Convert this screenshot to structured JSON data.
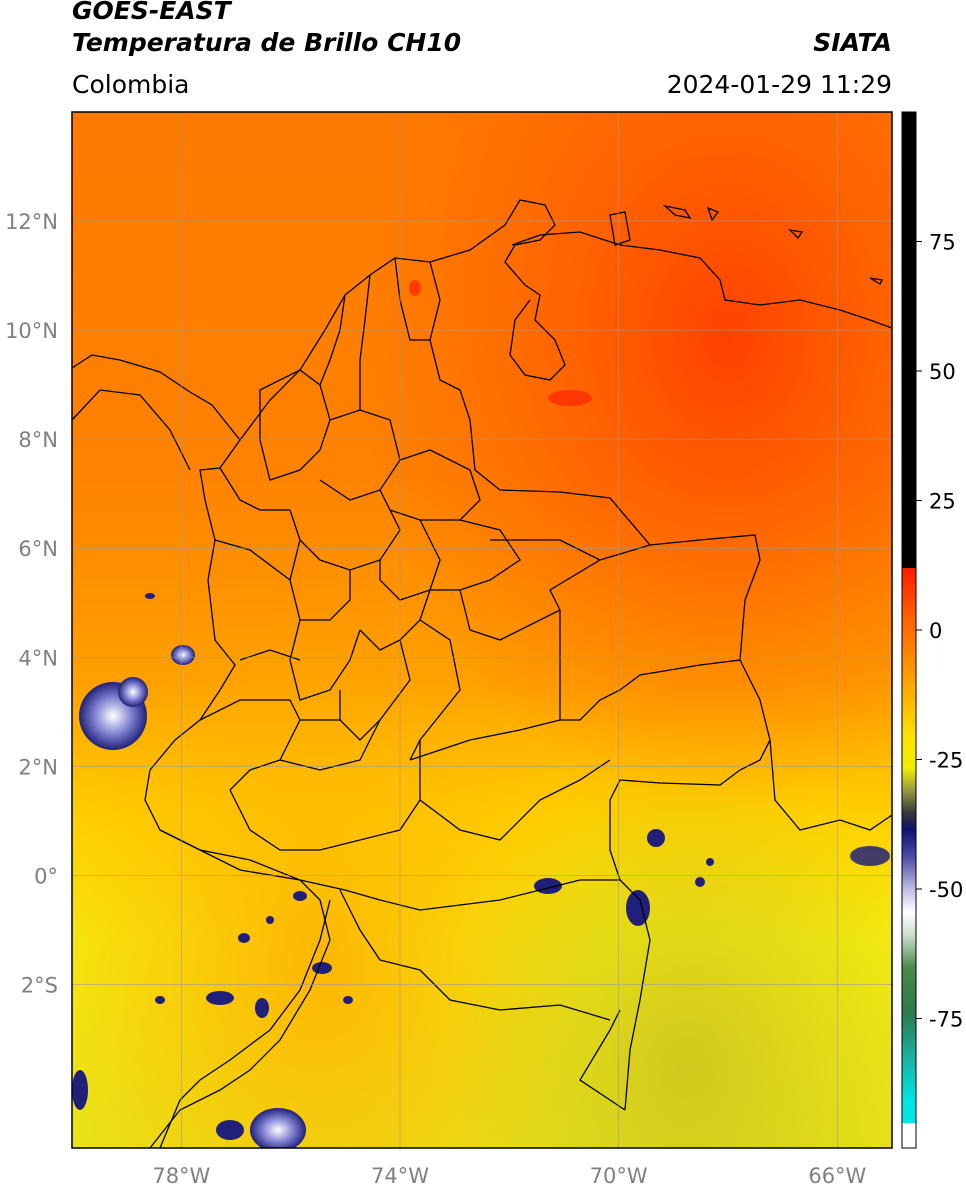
{
  "header": {
    "satellite": "GOES-EAST",
    "product": "Temperatura de Brillo CH10",
    "organization": "SIATA",
    "region": "Colombia",
    "timestamp": "2024-01-29 11:29"
  },
  "map": {
    "lon_range": [
      -80,
      -65
    ],
    "lat_range": [
      -5,
      14
    ],
    "lat_ticks": [
      {
        "value": 12,
        "label": "12°N"
      },
      {
        "value": 10,
        "label": "10°N"
      },
      {
        "value": 8,
        "label": "8°N"
      },
      {
        "value": 6,
        "label": "6°N"
      },
      {
        "value": 4,
        "label": "4°N"
      },
      {
        "value": 2,
        "label": "2°N"
      },
      {
        "value": 0,
        "label": "0°"
      },
      {
        "value": -2,
        "label": "2°S"
      }
    ],
    "lon_ticks": [
      {
        "value": -78,
        "label": "78°W"
      },
      {
        "value": -74,
        "label": "74°W"
      },
      {
        "value": -70,
        "label": "70°W"
      },
      {
        "value": -66,
        "label": "66°W"
      }
    ],
    "grid": true
  },
  "colorbar": {
    "range": [
      -100,
      100
    ],
    "ticks": [
      {
        "value": 75,
        "label": "75"
      },
      {
        "value": 50,
        "label": "50"
      },
      {
        "value": 25,
        "label": "25"
      },
      {
        "value": 0,
        "label": "0"
      },
      {
        "value": -25,
        "label": "-25"
      },
      {
        "value": -50,
        "label": "-50"
      },
      {
        "value": -75,
        "label": "-75"
      }
    ],
    "colors": {
      "black": "#000000",
      "red": "#ff1a00",
      "orange": "#ff8c00",
      "yellow": "#ffff00",
      "olive": "#7a7a20",
      "navy": "#10106e",
      "white": "#ffffff",
      "green": "#2f7d2f",
      "teal": "#1abfa0",
      "cyan": "#00e5e5"
    }
  }
}
